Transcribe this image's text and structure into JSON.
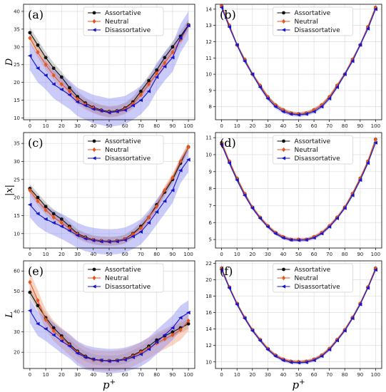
{
  "colors": {
    "assortative": "#111111",
    "neutral": "#e8541c",
    "disassortative": "#1515cc",
    "band_assortative": "#9a9a9a",
    "band_neutral": "#f4a07a",
    "band_disassortative": "#8c8cf2",
    "grid": "#dedede"
  },
  "xlabel": "p",
  "xlabel_sup": "+",
  "chart_data": [
    {
      "id": "a",
      "panel_label": "(a)",
      "ylabel": "D",
      "type": "line",
      "ylim": [
        9.5,
        42
      ],
      "yticks": [
        10,
        15,
        20,
        25,
        30,
        35,
        40
      ],
      "xticks": [
        0,
        10,
        20,
        30,
        40,
        50,
        60,
        70,
        80,
        90,
        100
      ],
      "xlim": [
        -4,
        104
      ],
      "x": [
        0,
        5,
        10,
        15,
        20,
        25,
        30,
        35,
        40,
        45,
        50,
        55,
        60,
        65,
        70,
        75,
        80,
        85,
        90,
        95,
        100
      ],
      "legend": [
        "Assortative",
        "Neutral",
        "Disassortative"
      ],
      "legend_loc": "top-center",
      "series": [
        {
          "name": "Assortative",
          "key": "assortative",
          "marker": "circle",
          "values": [
            34,
            30.5,
            27,
            24,
            21.5,
            18.5,
            16,
            14.2,
            13,
            12.2,
            11.8,
            12,
            12.8,
            14.5,
            17.5,
            20.5,
            23.5,
            27,
            30,
            33,
            36.2
          ],
          "band": 1.5
        },
        {
          "name": "Neutral",
          "key": "neutral",
          "marker": "diamond",
          "values": [
            32.5,
            28.5,
            25,
            22,
            19.5,
            17.5,
            15.3,
            13.8,
            12.8,
            12,
            11.6,
            11.8,
            12.5,
            14,
            16.5,
            19.5,
            22.5,
            25.5,
            28.5,
            32,
            36
          ],
          "band": 1.5
        },
        {
          "name": "Disassortative",
          "key": "disassortative",
          "marker": "triangle-left",
          "values": [
            27.5,
            24,
            22,
            19.5,
            18,
            16.5,
            14.5,
            13.5,
            12.5,
            12,
            11.5,
            11.8,
            12.2,
            13.5,
            15,
            17.5,
            21.5,
            24.5,
            27,
            32.5,
            36
          ],
          "band": 4
        }
      ]
    },
    {
      "id": "b",
      "panel_label": "(b)",
      "ylabel": "",
      "type": "line",
      "ylim": [
        7.2,
        14.3
      ],
      "yticks": [
        8,
        9,
        10,
        11,
        12,
        13,
        14
      ],
      "xticks": [
        0,
        10,
        20,
        30,
        40,
        50,
        60,
        70,
        80,
        90,
        100
      ],
      "xlim": [
        -4,
        104
      ],
      "x": [
        0,
        5,
        10,
        15,
        20,
        25,
        30,
        35,
        40,
        45,
        50,
        55,
        60,
        65,
        70,
        75,
        80,
        85,
        90,
        95,
        100
      ],
      "legend": [
        "Assortative",
        "Neutral",
        "Disassortative"
      ],
      "legend_loc": "top-center",
      "series": [
        {
          "name": "Assortative",
          "key": "assortative",
          "marker": "circle",
          "values": [
            14.2,
            13,
            11.8,
            10.9,
            10,
            9.3,
            8.6,
            8.1,
            7.8,
            7.6,
            7.55,
            7.6,
            7.8,
            8.1,
            8.6,
            9.3,
            10,
            10.9,
            11.8,
            12.9,
            14.1
          ],
          "band": 0.12
        },
        {
          "name": "Neutral",
          "key": "neutral",
          "marker": "diamond",
          "values": [
            14.2,
            13,
            11.8,
            10.9,
            10,
            9.3,
            8.6,
            8.1,
            7.8,
            7.6,
            7.55,
            7.6,
            7.8,
            8.1,
            8.6,
            9.3,
            10,
            10.9,
            11.8,
            12.9,
            14.1
          ],
          "band": 0.12
        },
        {
          "name": "Disassortative",
          "key": "disassortative",
          "marker": "triangle-left",
          "values": [
            14.1,
            12.9,
            11.8,
            10.8,
            10,
            9.2,
            8.5,
            8.0,
            7.7,
            7.55,
            7.5,
            7.55,
            7.7,
            8.0,
            8.5,
            9.2,
            10,
            10.8,
            11.8,
            12.8,
            14
          ],
          "band": 0.12
        }
      ]
    },
    {
      "id": "c",
      "panel_label": "(c)",
      "ylabel": "|x|",
      "type": "line",
      "ylim": [
        6,
        38
      ],
      "yticks": [
        10,
        15,
        20,
        25,
        30,
        35
      ],
      "xticks": [
        0,
        10,
        20,
        30,
        40,
        50,
        60,
        70,
        80,
        90,
        100
      ],
      "xlim": [
        -4,
        104
      ],
      "x": [
        0,
        5,
        10,
        15,
        20,
        25,
        30,
        35,
        40,
        45,
        50,
        55,
        60,
        65,
        70,
        75,
        80,
        85,
        90,
        95,
        100
      ],
      "legend": [
        "Assortative",
        "Neutral",
        "Disassortative"
      ],
      "legend_loc": "top-center",
      "series": [
        {
          "name": "Assortative",
          "key": "assortative",
          "marker": "circle",
          "values": [
            22.5,
            20,
            17.5,
            15.5,
            14,
            12,
            10,
            9,
            8.3,
            8,
            7.9,
            8,
            8.5,
            10,
            12,
            14.5,
            18,
            21.5,
            25,
            29.5,
            34
          ],
          "band": 1.2
        },
        {
          "name": "Neutral",
          "key": "neutral",
          "marker": "diamond",
          "values": [
            22,
            19,
            16.5,
            14.5,
            13,
            11.5,
            9.8,
            8.8,
            8.2,
            7.9,
            7.8,
            7.9,
            8.4,
            9.8,
            11.5,
            14.5,
            17.5,
            22,
            25.5,
            30,
            34
          ],
          "band": 1.2
        },
        {
          "name": "Disassortative",
          "key": "disassortative",
          "marker": "triangle-left",
          "values": [
            18,
            15.5,
            14,
            13,
            12,
            10.8,
            9.5,
            8.6,
            8.1,
            7.8,
            7.7,
            7.8,
            8.2,
            9.2,
            10.5,
            13,
            16,
            19,
            22,
            27.5,
            30.5
          ],
          "band": 3.5
        }
      ]
    },
    {
      "id": "d",
      "panel_label": "(d)",
      "ylabel": "",
      "type": "line",
      "ylim": [
        4.5,
        11.3
      ],
      "yticks": [
        5,
        6,
        7,
        8,
        9,
        10,
        11
      ],
      "xticks": [
        0,
        10,
        20,
        30,
        40,
        50,
        60,
        70,
        80,
        90,
        100
      ],
      "xlim": [
        -4,
        104
      ],
      "x": [
        0,
        5,
        10,
        15,
        20,
        25,
        30,
        35,
        40,
        45,
        50,
        55,
        60,
        65,
        70,
        75,
        80,
        85,
        90,
        95,
        100
      ],
      "legend": [
        "Assortative",
        "Neutral",
        "Disassortative"
      ],
      "legend_loc": "top-center",
      "series": [
        {
          "name": "Assortative",
          "key": "assortative",
          "marker": "circle",
          "values": [
            10.7,
            9.6,
            8.6,
            7.7,
            6.9,
            6.3,
            5.8,
            5.4,
            5.15,
            5.0,
            5.0,
            5.0,
            5.15,
            5.4,
            5.8,
            6.3,
            6.9,
            7.7,
            8.6,
            9.6,
            10.9
          ],
          "band": 0.1
        },
        {
          "name": "Neutral",
          "key": "neutral",
          "marker": "diamond",
          "values": [
            10.7,
            9.6,
            8.6,
            7.7,
            6.9,
            6.3,
            5.8,
            5.4,
            5.15,
            5.0,
            5.0,
            5.0,
            5.15,
            5.4,
            5.8,
            6.3,
            6.9,
            7.7,
            8.6,
            9.6,
            10.9
          ],
          "band": 0.1
        },
        {
          "name": "Disassortative",
          "key": "disassortative",
          "marker": "triangle-left",
          "values": [
            10.6,
            9.5,
            8.5,
            7.6,
            6.85,
            6.25,
            5.75,
            5.35,
            5.1,
            4.98,
            4.96,
            4.98,
            5.1,
            5.35,
            5.75,
            6.25,
            6.85,
            7.6,
            8.5,
            9.5,
            10.7
          ],
          "band": 0.1
        }
      ]
    },
    {
      "id": "e",
      "panel_label": "(e)",
      "ylabel": "L",
      "type": "line",
      "ylim": [
        12,
        65
      ],
      "yticks": [
        20,
        30,
        40,
        50,
        60
      ],
      "xticks": [
        0,
        10,
        20,
        30,
        40,
        50,
        60,
        70,
        80,
        90,
        100
      ],
      "xlim": [
        -4,
        104
      ],
      "x": [
        0,
        5,
        10,
        15,
        20,
        25,
        30,
        35,
        40,
        45,
        50,
        55,
        60,
        65,
        70,
        75,
        80,
        85,
        90,
        95,
        100
      ],
      "legend": [
        "Assortative",
        "Neutral",
        "Disassortative"
      ],
      "legend_loc": "top-center",
      "series": [
        {
          "name": "Assortative",
          "key": "assortative",
          "marker": "circle",
          "values": [
            49.5,
            43,
            37,
            32,
            28,
            24,
            20.5,
            18,
            16.5,
            16,
            15.8,
            16,
            16.8,
            18.5,
            20.5,
            23,
            26,
            28,
            30,
            32,
            34
          ],
          "band": 2.5
        },
        {
          "name": "Neutral",
          "key": "neutral",
          "marker": "diamond",
          "values": [
            54.5,
            45.5,
            36,
            30.5,
            27,
            23.5,
            20,
            17.5,
            16.2,
            15.8,
            15.6,
            15.8,
            16.5,
            18,
            20,
            22,
            24.5,
            26.5,
            28.5,
            31,
            35.5
          ],
          "band": 5
        },
        {
          "name": "Disassortative",
          "key": "disassortative",
          "marker": "triangle-left",
          "values": [
            40.5,
            34,
            31.5,
            28.5,
            25.5,
            23,
            19.5,
            17.5,
            16.5,
            16,
            15.6,
            15.8,
            16.3,
            17.5,
            19,
            21.5,
            25,
            28.5,
            32,
            37,
            39.5
          ],
          "band": 6
        }
      ]
    },
    {
      "id": "f",
      "panel_label": "(f)",
      "ylabel": "",
      "type": "line",
      "ylim": [
        9.2,
        22.3
      ],
      "yticks": [
        10,
        12,
        14,
        16,
        18,
        20,
        22
      ],
      "xticks": [
        0,
        10,
        20,
        30,
        40,
        50,
        60,
        70,
        80,
        90,
        100
      ],
      "xlim": [
        -4,
        104
      ],
      "x": [
        0,
        5,
        10,
        15,
        20,
        25,
        30,
        35,
        40,
        45,
        50,
        55,
        60,
        65,
        70,
        75,
        80,
        85,
        90,
        95,
        100
      ],
      "legend": [
        "Assortative",
        "Neutral",
        "Disassortative"
      ],
      "legend_loc": "top-center",
      "series": [
        {
          "name": "Assortative",
          "key": "assortative",
          "marker": "circle",
          "values": [
            21.4,
            19.1,
            17.1,
            15.4,
            13.9,
            12.7,
            11.6,
            10.8,
            10.3,
            10.05,
            10.0,
            10.05,
            10.3,
            10.8,
            11.6,
            12.7,
            13.9,
            15.4,
            17.1,
            19.1,
            21.4
          ],
          "band": 0.2
        },
        {
          "name": "Neutral",
          "key": "neutral",
          "marker": "diamond",
          "values": [
            21.4,
            19.1,
            17.1,
            15.4,
            13.9,
            12.7,
            11.6,
            10.8,
            10.3,
            10.05,
            10.0,
            10.05,
            10.3,
            10.8,
            11.6,
            12.7,
            13.9,
            15.4,
            17.1,
            19.1,
            21.4
          ],
          "band": 0.2
        },
        {
          "name": "Disassortative",
          "key": "disassortative",
          "marker": "triangle-left",
          "values": [
            21.2,
            19.0,
            17.0,
            15.3,
            13.8,
            12.6,
            11.5,
            10.7,
            10.2,
            9.95,
            9.9,
            9.95,
            10.2,
            10.7,
            11.5,
            12.6,
            13.8,
            15.3,
            17.0,
            19.0,
            21.2
          ],
          "band": 0.2
        }
      ]
    }
  ]
}
